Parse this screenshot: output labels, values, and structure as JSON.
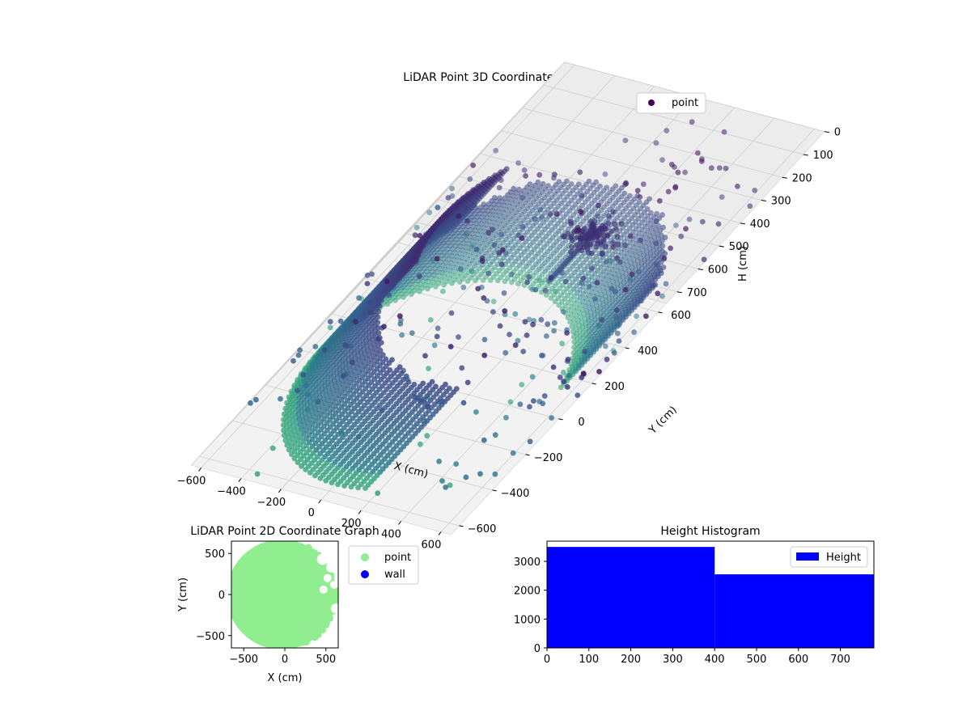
{
  "chart_data": [
    {
      "id": "main3d",
      "type": "scatter",
      "title": "LiDAR Point 3D Coordinate Graph",
      "xlabel": "X (cm)",
      "ylabel": "Y (cm)",
      "zlabel": "H (cm)",
      "xticks": [
        "−600",
        "−400",
        "−200",
        "0",
        "200",
        "400",
        "600"
      ],
      "yticks": [
        "−600",
        "−400",
        "−200",
        "0",
        "200",
        "400",
        "600"
      ],
      "zticks": [
        "0",
        "100",
        "200",
        "300",
        "400",
        "500",
        "600",
        "700"
      ],
      "xlim": [
        -650,
        650
      ],
      "ylim": [
        -650,
        650
      ],
      "zlim": [
        0,
        750
      ],
      "z_inverted": true,
      "legend": {
        "placement": "top-right",
        "entries": [
          {
            "label": "point",
            "color": "#440154"
          }
        ]
      },
      "series": [
        {
          "name": "point",
          "colormap": "viridis",
          "wall": {
            "center_x": 0,
            "center_y": 0,
            "radius": 560,
            "angle_from_deg": 15,
            "angle_to_deg": 285,
            "height_min": 0,
            "height_max": 460
          },
          "tree": {
            "x": 100,
            "y": 160,
            "trunk_top": 560,
            "trunk_bottom": 350,
            "crown_height": 580,
            "crown_radius": 90
          },
          "scatter_count": 300
        }
      ],
      "grid": true
    },
    {
      "id": "plan2d",
      "type": "scatter",
      "title": "LiDAR Point 2D Coordinate Graph",
      "xlabel": "X (cm)",
      "ylabel": "Y (cm)",
      "xticks": [
        "−500",
        "0",
        "500"
      ],
      "yticks": [
        "−500",
        "0",
        "500"
      ],
      "xlim": [
        -650,
        650
      ],
      "ylim": [
        -650,
        650
      ],
      "legend": {
        "placement": "right",
        "entries": [
          {
            "label": "point",
            "color": "#90ee90"
          },
          {
            "label": "wall",
            "color": "#0000ff"
          }
        ]
      },
      "series": [
        {
          "name": "point",
          "color": "#90ee90",
          "region": "filled disk radius ~620 centred near (0,0)"
        },
        {
          "name": "wall",
          "color": "#0000ff",
          "values": []
        }
      ],
      "grid": false
    },
    {
      "id": "histogram",
      "type": "bar",
      "title": "Height Histogram",
      "xlabel": "",
      "ylabel": "",
      "xticks": [
        "0",
        "100",
        "200",
        "300",
        "400",
        "500",
        "600",
        "700"
      ],
      "yticks": [
        "0",
        "1000",
        "2000",
        "3000"
      ],
      "xlim": [
        0,
        780
      ],
      "ylim": [
        0,
        3700
      ],
      "bins": [
        {
          "from": 0,
          "to": 400,
          "count": 3500
        },
        {
          "from": 400,
          "to": 780,
          "count": 2550
        }
      ],
      "color": "#0000ff",
      "legend": {
        "placement": "top-right",
        "entries": [
          {
            "label": "Height",
            "color": "#0000ff"
          }
        ]
      },
      "grid": false
    }
  ]
}
